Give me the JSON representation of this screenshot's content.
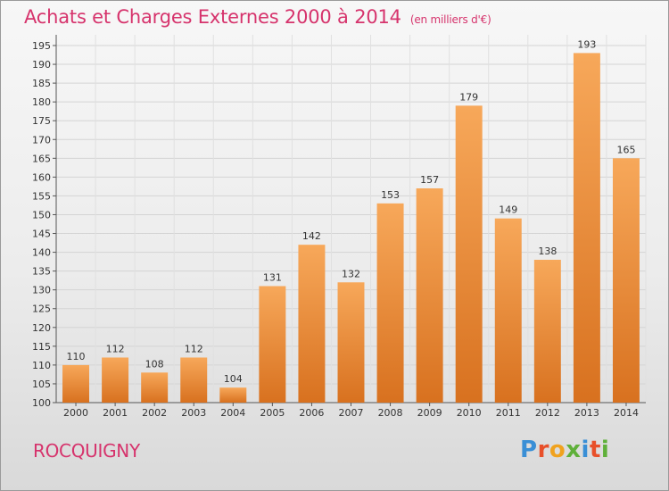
{
  "header": {
    "title": "Achats et Charges Externes 2000 à 2014",
    "unit": "(en milliers d'€)"
  },
  "footer": {
    "place": "ROCQUIGNY",
    "logo_text": "Proxiti"
  },
  "colors": {
    "title": "#d6336c",
    "bar_light": "#f7a85a",
    "bar_dark": "#d8711f",
    "logo": [
      "#3a8fd6",
      "#e8502a",
      "#f0a21e",
      "#5fb03a",
      "#3a8fd6",
      "#e8502a",
      "#5fb03a"
    ]
  },
  "chart_data": {
    "type": "bar",
    "categories": [
      "2000",
      "2001",
      "2002",
      "2003",
      "2004",
      "2005",
      "2006",
      "2007",
      "2008",
      "2009",
      "2010",
      "2011",
      "2012",
      "2013",
      "2014"
    ],
    "values": [
      110,
      112,
      108,
      112,
      104,
      131,
      142,
      132,
      153,
      157,
      179,
      149,
      138,
      193,
      165
    ],
    "ylim": [
      100,
      195
    ],
    "yticks": [
      100,
      105,
      110,
      115,
      120,
      125,
      130,
      135,
      140,
      145,
      150,
      155,
      160,
      165,
      170,
      175,
      180,
      185,
      190,
      195
    ],
    "grid": true,
    "legend": "none"
  }
}
